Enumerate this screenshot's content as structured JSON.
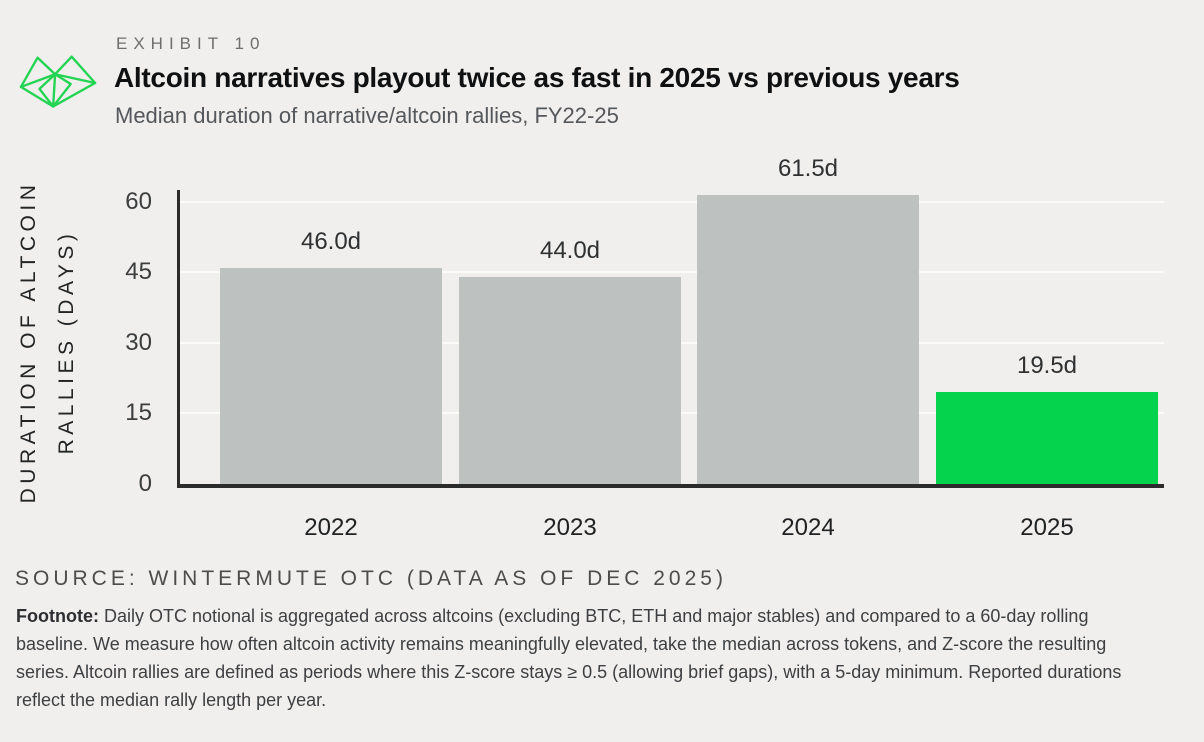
{
  "header": {
    "exhibit_label": "EXHIBIT 10",
    "title": "Altcoin narratives playout twice as fast in 2025 vs previous years",
    "subtitle": "Median duration of narrative/altcoin rallies, FY22-25"
  },
  "chart_data": {
    "type": "bar",
    "categories": [
      "2022",
      "2023",
      "2024",
      "2025"
    ],
    "values": [
      46.0,
      44.0,
      61.5,
      19.5
    ],
    "value_labels": [
      "46.0d",
      "44.0d",
      "61.5d",
      "19.5d"
    ],
    "title": "Altcoin narratives playout twice as fast in 2025 vs previous years",
    "subtitle": "Median duration of narrative/altcoin rallies, FY22-25",
    "xlabel": "",
    "ylabel_line1": "DURATION OF ALTCOIN",
    "ylabel_line2": "RALLIES (DAYS)",
    "yticks": [
      0,
      15,
      30,
      45,
      60
    ],
    "ylim": [
      0,
      62
    ],
    "grid": true,
    "legend": "none",
    "bar_colors": [
      "#bdc2c0",
      "#bdc2c0",
      "#bdc2c0",
      "#06d34d"
    ],
    "default_bar_color": "#bdc2c0",
    "highlight_color": "#06d34d"
  },
  "logo": {
    "name": "wintermute-logo",
    "color": "#23d452"
  },
  "source": "SOURCE: WINTERMUTE OTC (DATA AS OF DEC 2025)",
  "footnote": {
    "label": "Footnote:",
    "text": "Daily OTC notional is aggregated across altcoins (excluding BTC, ETH and major stables) and compared to a 60-day rolling baseline. We measure how often altcoin activity remains meaningfully elevated, take the median across tokens, and Z-score the resulting series. Altcoin rallies are defined as periods where this Z-score stays ≥ 0.5 (allowing brief gaps), with a 5-day minimum. Reported durations reflect the median rally length per year."
  }
}
